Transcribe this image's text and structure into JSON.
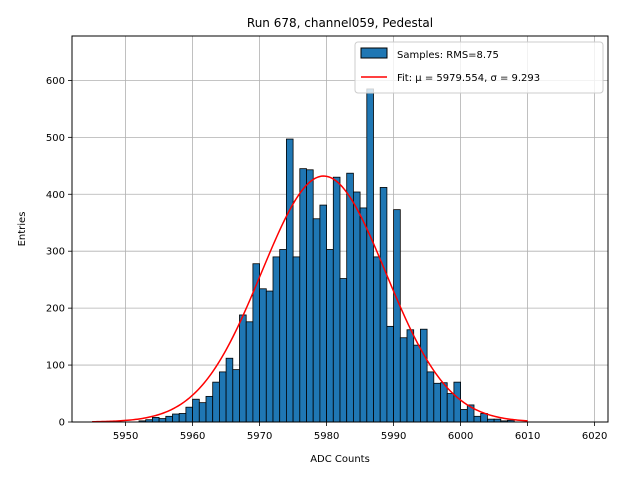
{
  "chart_data": {
    "type": "bar",
    "title": "Run 678, channel059, Pedestal",
    "xlabel": "ADC Counts",
    "ylabel": "Entries",
    "xlim": [
      5942,
      6022
    ],
    "ylim": [
      0,
      678
    ],
    "xticks": [
      5950,
      5960,
      5970,
      5980,
      5990,
      6000,
      6010,
      6020
    ],
    "yticks": [
      0,
      100,
      200,
      300,
      400,
      500,
      600
    ],
    "grid": true,
    "legend_position": "top-right",
    "bin_width": 1,
    "bin_starts": [
      5952,
      5953,
      5954,
      5955,
      5956,
      5957,
      5958,
      5959,
      5960,
      5961,
      5962,
      5963,
      5964,
      5965,
      5966,
      5967,
      5968,
      5969,
      5970,
      5971,
      5972,
      5973,
      5974,
      5975,
      5976,
      5977,
      5978,
      5979,
      5980,
      5981,
      5982,
      5983,
      5984,
      5985,
      5986,
      5987,
      5988,
      5989,
      5990,
      5991,
      5992,
      5993,
      5994,
      5995,
      5996,
      5997,
      5998,
      5999,
      6000,
      6001,
      6002,
      6003,
      6004,
      6005,
      6006,
      6007
    ],
    "counts": [
      2,
      4,
      8,
      6,
      10,
      14,
      15,
      26,
      40,
      34,
      45,
      70,
      88,
      112,
      92,
      188,
      176,
      278,
      234,
      230,
      290,
      303,
      497,
      290,
      445,
      443,
      357,
      381,
      303,
      430,
      252,
      437,
      404,
      376,
      585,
      290,
      412,
      168,
      373,
      148,
      162,
      135,
      163,
      88,
      68,
      69,
      50,
      70,
      22,
      30,
      10,
      15,
      5,
      5,
      2,
      3
    ],
    "series": [
      {
        "name": "Samples: RMS=8.75",
        "kind": "histogram",
        "color": "#1f77b4",
        "edgecolor": "#000000"
      },
      {
        "name": "Fit: μ = 5979.554, σ = 9.293",
        "kind": "gaussian_fit",
        "color": "#ff0000",
        "mu": 5979.554,
        "sigma": 9.293,
        "amplitude": 432,
        "x_range": [
          5945,
          6010
        ]
      }
    ]
  }
}
